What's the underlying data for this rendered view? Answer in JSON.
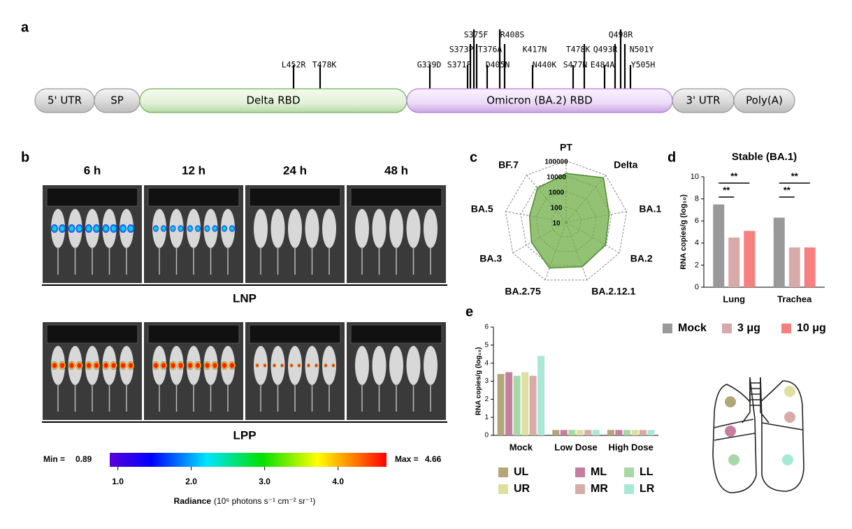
{
  "panel_a": {
    "label": "a",
    "segments": [
      "5' UTR",
      "SP",
      "Delta RBD",
      "Omicron (BA.2) RBD",
      "3' UTR",
      "Poly(A)"
    ],
    "delta_mutations": [
      "L452R",
      "T478K"
    ],
    "omicron_mutations": [
      "G339D",
      "S371F",
      "S373P",
      "S375F",
      "T376A",
      "D405N",
      "R408S",
      "K417N",
      "N440K",
      "S477N",
      "T478K",
      "E484A",
      "Q493R",
      "Q498R",
      "N501Y",
      "Y505H"
    ]
  },
  "panel_b": {
    "label": "b",
    "times": [
      "6 h",
      "12 h",
      "24 h",
      "48 h"
    ],
    "groups": [
      "LNP",
      "LPP"
    ],
    "colorbar": {
      "min_text": "Min =",
      "min": 0.89,
      "max_text": "Max =",
      "max": 4.66,
      "ticks": [
        {
          "value": 1,
          "label": "1.0"
        },
        {
          "value": 2,
          "label": "2.0"
        },
        {
          "value": 3,
          "label": "3.0"
        },
        {
          "value": 4,
          "label": "4.0"
        }
      ],
      "title": "Radiance",
      "unit": "(10⁶ photons s⁻¹ cm⁻² sr⁻¹)"
    }
  },
  "chart_data": [
    {
      "type": "radar",
      "panel_label": "c",
      "categories": [
        "PT",
        "Delta",
        "BA.1",
        "BA.2",
        "BA.2.12.1",
        "BA.2.75",
        "BA.3",
        "BA.5",
        "BF.7"
      ],
      "values": [
        15000,
        60000,
        7000,
        9000,
        12000,
        15000,
        4000,
        2600,
        8000
      ],
      "color": "#70ad47",
      "rlim": [
        10,
        100000
      ],
      "rticks": [
        10,
        100,
        1000,
        10000,
        100000
      ],
      "log_scale": true
    },
    {
      "type": "bar",
      "panel_label": "d",
      "title": "Stable (BA.1)",
      "ylabel": "RNA copies/g (log₁₀)",
      "categories": [
        "Lung",
        "Trachea"
      ],
      "series": [
        {
          "name": "Mock",
          "color": "#999999",
          "values": [
            7.5,
            6.3
          ]
        },
        {
          "name": "3 μg",
          "color": "#d8a9a9",
          "values": [
            4.5,
            3.6
          ]
        },
        {
          "name": "10 μg",
          "color": "#f77f7f",
          "values": [
            5.1,
            3.6
          ]
        }
      ],
      "ylim": [
        0,
        10
      ],
      "yticks": [
        0,
        2,
        4,
        6,
        8,
        10
      ],
      "annotations": [
        "**",
        "**",
        "**",
        "**"
      ]
    },
    {
      "type": "bar",
      "panel_label": "e",
      "ylabel": "RNA copies/g (log₁₀)",
      "categories": [
        "Mock",
        "Low Dose",
        "High Dose"
      ],
      "series": [
        {
          "name": "UL",
          "color": "#b3a77a",
          "values": [
            3.4,
            0.3,
            0.3
          ]
        },
        {
          "name": "ML",
          "color": "#c67ea0",
          "values": [
            3.5,
            0.3,
            0.3
          ]
        },
        {
          "name": "LL",
          "color": "#a6d9a6",
          "values": [
            3.3,
            0.3,
            0.3
          ]
        },
        {
          "name": "UR",
          "color": "#dfe0a0",
          "values": [
            3.5,
            0.3,
            0.3
          ]
        },
        {
          "name": "MR",
          "color": "#d8aba7",
          "values": [
            3.3,
            0.3,
            0.3
          ]
        },
        {
          "name": "LR",
          "color": "#a7e8d6",
          "values": [
            4.4,
            0.3,
            0.3
          ]
        }
      ],
      "ylim": [
        0,
        6
      ],
      "yticks": [
        0,
        1,
        2,
        3,
        4,
        5,
        6
      ]
    }
  ]
}
